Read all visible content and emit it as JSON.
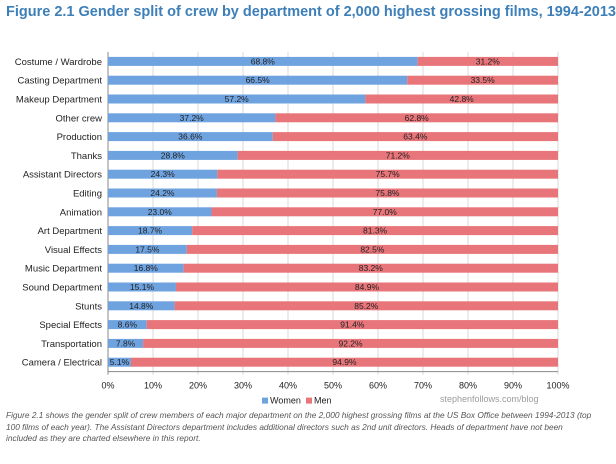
{
  "title": "Figure 2.1 Gender split of crew by department of 2,000 highest grossing films, 1994-2013",
  "watermark": "stephenfollows.com/blog",
  "caption": "Figure 2.1 shows the gender split of crew members of each major department on the 2,000 highest grossing films at the US Box Office between 1994-2013 (top 100 films of each year). The Assistant Directors department includes additional directors such as 2nd unit directors. Heads of department have not been included as they are charted elsewhere in this report.",
  "colors": {
    "women": "#6fa3e0",
    "men": "#e8757a",
    "title": "#3d7fb8",
    "grid": "#d9d9d9"
  },
  "chart_data": {
    "type": "bar",
    "orientation": "horizontal",
    "stacked": "percent",
    "categories": [
      "Costume / Wardrobe",
      "Casting Department",
      "Makeup Department",
      "Other crew",
      "Production",
      "Thanks",
      "Assistant Directors",
      "Editing",
      "Animation",
      "Art Department",
      "Visual Effects",
      "Music Department",
      "Sound Department",
      "Stunts",
      "Special Effects",
      "Transportation",
      "Camera / Electrical"
    ],
    "series": [
      {
        "name": "Women",
        "values": [
          68.8,
          66.5,
          57.2,
          37.2,
          36.6,
          28.8,
          24.3,
          24.2,
          23.0,
          18.7,
          17.5,
          16.8,
          15.1,
          14.8,
          8.6,
          7.8,
          5.1
        ],
        "labels": [
          "68.8%",
          "66.5%",
          "57.2%",
          "37.2%",
          "36.6%",
          "28.8%",
          "24.3%",
          "24.2%",
          "23.0%",
          "18.7%",
          "17.5%",
          "16.8%",
          "15.1%",
          "14.8%",
          "8.6%",
          "7.8%",
          "5.1%"
        ]
      },
      {
        "name": "Men",
        "values": [
          31.2,
          33.5,
          42.8,
          62.8,
          63.4,
          71.2,
          75.7,
          75.8,
          77.0,
          81.3,
          82.5,
          83.2,
          84.9,
          85.2,
          91.4,
          92.2,
          94.9
        ],
        "labels": [
          "31.2%",
          "33.5%",
          "42.8%",
          "62.8%",
          "63.4%",
          "71.2%",
          "75.7%",
          "75.8%",
          "77.0%",
          "81.3%",
          "82.5%",
          "83.2%",
          "84.9%",
          "85.2%",
          "91.4%",
          "92.2%",
          "94.9%"
        ]
      }
    ],
    "xlim": [
      0,
      100
    ],
    "xticks": [
      "0%",
      "10%",
      "20%",
      "30%",
      "40%",
      "50%",
      "60%",
      "70%",
      "80%",
      "90%",
      "100%"
    ],
    "grid": true,
    "legend_position": "bottom-center"
  }
}
